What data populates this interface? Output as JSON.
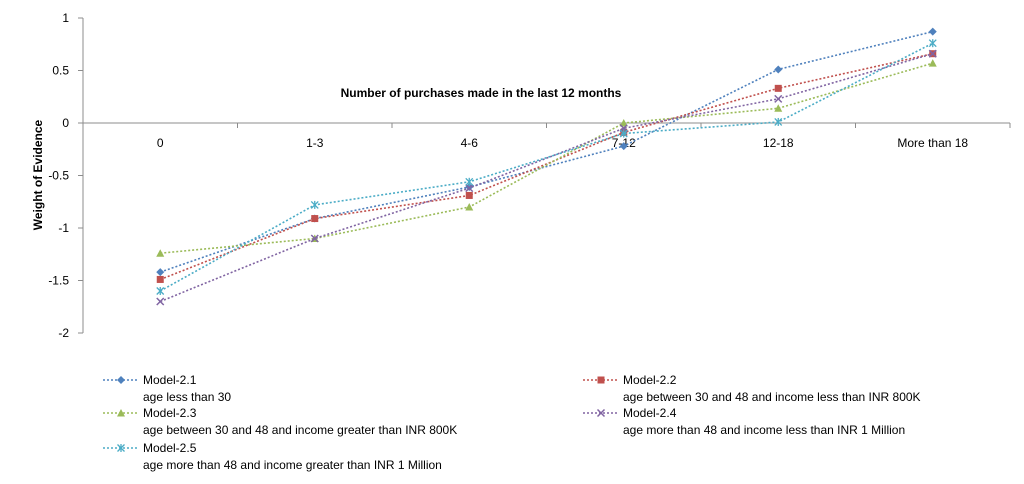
{
  "chart_data": {
    "type": "line",
    "title": "Number of purchases made in the last 12 months",
    "xlabel": "",
    "ylabel": "Weight of Evidence",
    "categories": [
      "0",
      "1-3",
      "4-6",
      "7-12",
      "12-18",
      "More than 18"
    ],
    "ylim": [
      -2,
      1
    ],
    "yticks": [
      1,
      0.5,
      0,
      -0.5,
      -1,
      -1.5,
      -2
    ],
    "grid": false,
    "legend_position": "bottom",
    "series": [
      {
        "name": "Model-2.1",
        "description": "age less than 30",
        "color": "#4f81bd",
        "marker": "diamond",
        "values": [
          -1.42,
          -0.91,
          -0.61,
          -0.22,
          0.51,
          0.87
        ]
      },
      {
        "name": "Model-2.2",
        "description": "age between 30 and 48 and income less than INR 800K",
        "color": "#c0504d",
        "marker": "square",
        "values": [
          -1.49,
          -0.91,
          -0.69,
          -0.09,
          0.33,
          0.66
        ]
      },
      {
        "name": "Model-2.3",
        "description": "age between 30 and 48 and income greater than INR 800K",
        "color": "#9bbb59",
        "marker": "triangle",
        "values": [
          -1.24,
          -1.1,
          -0.8,
          0.0,
          0.14,
          0.57
        ]
      },
      {
        "name": "Model-2.4",
        "description": "age more than 48 and income less than INR 1 Million",
        "color": "#8064a2",
        "marker": "x",
        "values": [
          -1.7,
          -1.1,
          -0.62,
          -0.05,
          0.23,
          0.66
        ]
      },
      {
        "name": "Model-2.5",
        "description": "age more than 48 and income greater than INR 1 Million",
        "color": "#4bacc6",
        "marker": "star",
        "values": [
          -1.6,
          -0.78,
          -0.56,
          -0.1,
          0.01,
          0.76
        ]
      }
    ]
  }
}
